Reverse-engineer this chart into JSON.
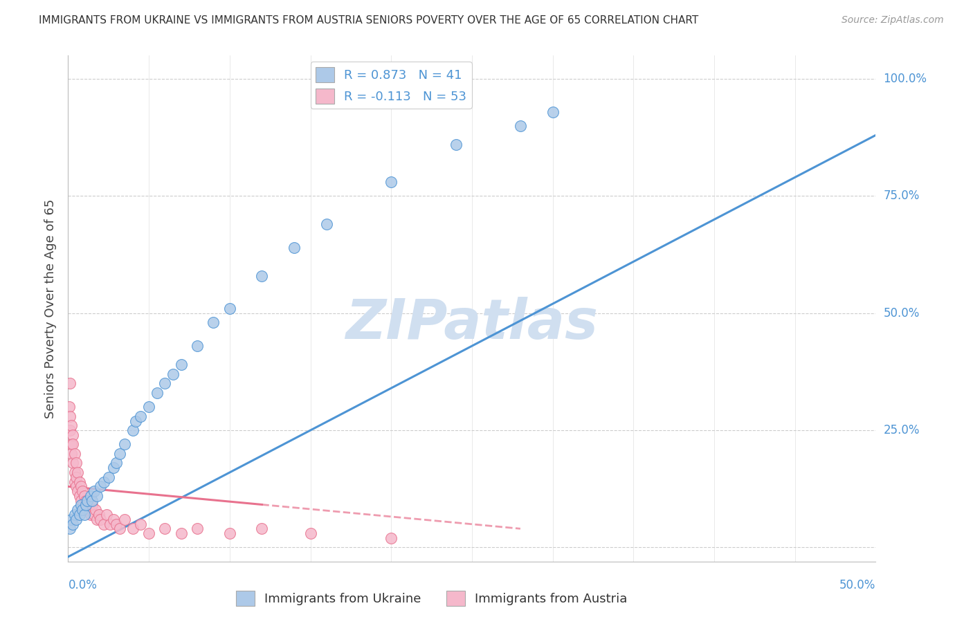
{
  "title": "IMMIGRANTS FROM UKRAINE VS IMMIGRANTS FROM AUSTRIA SENIORS POVERTY OVER THE AGE OF 65 CORRELATION CHART",
  "source": "Source: ZipAtlas.com",
  "ylabel": "Seniors Poverty Over the Age of 65",
  "ukraine_color": "#adc9e8",
  "austria_color": "#f5b8cb",
  "ukraine_line_color": "#4d94d4",
  "austria_line_color": "#e8728e",
  "watermark_color": "#d0dff0",
  "background_color": "#ffffff",
  "grid_color": "#cccccc",
  "R_ukraine": 0.873,
  "N_ukraine": 41,
  "R_austria": -0.113,
  "N_austria": 53,
  "ukraine_scatter_x": [
    0.001,
    0.002,
    0.003,
    0.004,
    0.005,
    0.006,
    0.007,
    0.008,
    0.009,
    0.01,
    0.011,
    0.012,
    0.014,
    0.015,
    0.016,
    0.018,
    0.02,
    0.022,
    0.025,
    0.028,
    0.03,
    0.032,
    0.035,
    0.04,
    0.042,
    0.045,
    0.05,
    0.055,
    0.06,
    0.065,
    0.07,
    0.08,
    0.09,
    0.1,
    0.12,
    0.14,
    0.16,
    0.2,
    0.24,
    0.28,
    0.3
  ],
  "ukraine_scatter_y": [
    0.04,
    0.06,
    0.05,
    0.07,
    0.06,
    0.08,
    0.07,
    0.09,
    0.08,
    0.07,
    0.09,
    0.1,
    0.11,
    0.1,
    0.12,
    0.11,
    0.13,
    0.14,
    0.15,
    0.17,
    0.18,
    0.2,
    0.22,
    0.25,
    0.27,
    0.28,
    0.3,
    0.33,
    0.35,
    0.37,
    0.39,
    0.43,
    0.48,
    0.51,
    0.58,
    0.64,
    0.69,
    0.78,
    0.86,
    0.9,
    0.93
  ],
  "austria_scatter_x": [
    0.0005,
    0.001,
    0.001,
    0.001,
    0.002,
    0.002,
    0.002,
    0.003,
    0.003,
    0.003,
    0.004,
    0.004,
    0.004,
    0.005,
    0.005,
    0.005,
    0.006,
    0.006,
    0.007,
    0.007,
    0.008,
    0.008,
    0.009,
    0.009,
    0.01,
    0.01,
    0.011,
    0.012,
    0.013,
    0.014,
    0.015,
    0.016,
    0.017,
    0.018,
    0.019,
    0.02,
    0.022,
    0.024,
    0.026,
    0.028,
    0.03,
    0.032,
    0.035,
    0.04,
    0.045,
    0.05,
    0.06,
    0.07,
    0.08,
    0.1,
    0.12,
    0.15,
    0.2
  ],
  "austria_scatter_y": [
    0.3,
    0.35,
    0.25,
    0.28,
    0.22,
    0.26,
    0.2,
    0.24,
    0.18,
    0.22,
    0.16,
    0.2,
    0.14,
    0.18,
    0.15,
    0.13,
    0.16,
    0.12,
    0.14,
    0.11,
    0.13,
    0.1,
    0.12,
    0.09,
    0.11,
    0.08,
    0.1,
    0.09,
    0.08,
    0.07,
    0.09,
    0.07,
    0.08,
    0.06,
    0.07,
    0.06,
    0.05,
    0.07,
    0.05,
    0.06,
    0.05,
    0.04,
    0.06,
    0.04,
    0.05,
    0.03,
    0.04,
    0.03,
    0.04,
    0.03,
    0.04,
    0.03,
    0.02
  ],
  "ukraine_line_x": [
    0.0,
    0.5
  ],
  "ukraine_line_y": [
    -0.02,
    0.88
  ],
  "austria_line_x": [
    0.0,
    0.28
  ],
  "austria_line_y": [
    0.13,
    0.04
  ],
  "xlim": [
    0.0,
    0.5
  ],
  "ylim": [
    -0.03,
    1.05
  ],
  "legend_ukraine_label": "R = 0.873   N = 41",
  "legend_austria_label": "R = -0.113   N = 53",
  "legend_bottom_ukraine": "Immigrants from Ukraine",
  "legend_bottom_austria": "Immigrants from Austria",
  "ytick_positions": [
    0.0,
    0.25,
    0.5,
    0.75,
    1.0
  ],
  "ytick_labels": [
    "",
    "25.0%",
    "50.0%",
    "75.0%",
    "100.0%"
  ],
  "xtick_labels_left": "0.0%",
  "xtick_labels_right": "50.0%"
}
